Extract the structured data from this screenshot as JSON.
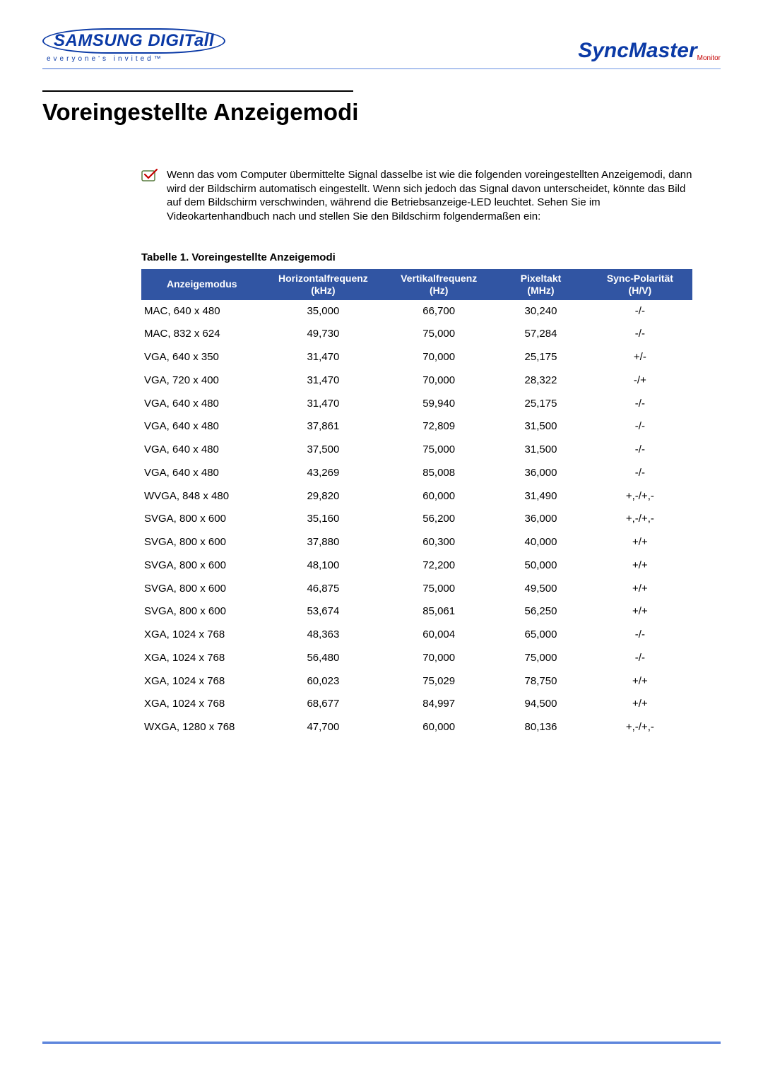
{
  "header": {
    "logo_left_main": "SAMSUNG DIGITall",
    "logo_left_tag": "everyone's invited™",
    "logo_right_main": "SyncMaster",
    "logo_right_sub": "Monitor"
  },
  "page_title": "Voreingestellte Anzeigemodi",
  "intro_text": "Wenn das vom Computer übermittelte Signal dasselbe ist wie die folgenden voreingestellten Anzeigemodi, dann wird der Bildschirm automatisch eingestellt. Wenn sich jedoch das Signal davon unterscheidet, könnte das Bild auf dem Bildschirm verschwinden, während die Betriebsanzeige-LED leuchtet. Sehen Sie im Videokartenhandbuch nach und stellen Sie den Bildschirm folgendermaßen ein:",
  "table": {
    "caption": "Tabelle 1. Voreingestellte Anzeigemodi",
    "header_bg": "#3155a3",
    "header_fg": "#ffffff",
    "columns": [
      {
        "label_line1": "Anzeigemodus",
        "label_line2": ""
      },
      {
        "label_line1": "Horizontalfrequenz",
        "label_line2": "(kHz)"
      },
      {
        "label_line1": "Vertikalfrequenz",
        "label_line2": "(Hz)"
      },
      {
        "label_line1": "Pixeltakt",
        "label_line2": "(MHz)"
      },
      {
        "label_line1": "Sync-Polarität",
        "label_line2": "(H/V)"
      }
    ],
    "rows": [
      {
        "mode": "MAC, 640 x 480",
        "h": "35,000",
        "v": "66,700",
        "p": "30,240",
        "s": "-/-"
      },
      {
        "mode": "MAC, 832 x 624",
        "h": "49,730",
        "v": "75,000",
        "p": "57,284",
        "s": "-/-"
      },
      {
        "mode": "VGA, 640 x 350",
        "h": "31,470",
        "v": "70,000",
        "p": "25,175",
        "s": "+/-"
      },
      {
        "mode": "VGA, 720 x 400",
        "h": "31,470",
        "v": "70,000",
        "p": "28,322",
        "s": "-/+"
      },
      {
        "mode": "VGA, 640 x 480",
        "h": "31,470",
        "v": "59,940",
        "p": "25,175",
        "s": "-/-"
      },
      {
        "mode": "VGA, 640 x 480",
        "h": "37,861",
        "v": "72,809",
        "p": "31,500",
        "s": "-/-"
      },
      {
        "mode": "VGA, 640 x 480",
        "h": "37,500",
        "v": "75,000",
        "p": "31,500",
        "s": "-/-"
      },
      {
        "mode": "VGA, 640 x 480",
        "h": "43,269",
        "v": "85,008",
        "p": "36,000",
        "s": "-/-"
      },
      {
        "mode": "WVGA, 848 x 480",
        "h": "29,820",
        "v": "60,000",
        "p": "31,490",
        "s": "+,-/+,-"
      },
      {
        "mode": "SVGA, 800 x 600",
        "h": "35,160",
        "v": "56,200",
        "p": "36,000",
        "s": "+,-/+,-"
      },
      {
        "mode": "SVGA, 800 x 600",
        "h": "37,880",
        "v": "60,300",
        "p": "40,000",
        "s": "+/+"
      },
      {
        "mode": "SVGA, 800 x 600",
        "h": "48,100",
        "v": "72,200",
        "p": "50,000",
        "s": "+/+"
      },
      {
        "mode": "SVGA, 800 x 600",
        "h": "46,875",
        "v": "75,000",
        "p": "49,500",
        "s": "+/+"
      },
      {
        "mode": "SVGA, 800 x 600",
        "h": "53,674",
        "v": "85,061",
        "p": "56,250",
        "s": "+/+"
      },
      {
        "mode": "XGA, 1024 x 768",
        "h": "48,363",
        "v": "60,004",
        "p": "65,000",
        "s": "-/-"
      },
      {
        "mode": "XGA, 1024 x 768",
        "h": "56,480",
        "v": "70,000",
        "p": "75,000",
        "s": "-/-"
      },
      {
        "mode": "XGA, 1024 x 768",
        "h": "60,023",
        "v": "75,029",
        "p": "78,750",
        "s": "+/+"
      },
      {
        "mode": "XGA, 1024 x 768",
        "h": "68,677",
        "v": "84,997",
        "p": "94,500",
        "s": "+/+"
      },
      {
        "mode": "WXGA, 1280 x 768",
        "h": "47,700",
        "v": "60,000",
        "p": "80,136",
        "s": "+,-/+,-"
      }
    ]
  },
  "colors": {
    "divider": "#3a6ad4",
    "brand_blue": "#0b3aa6",
    "brand_red": "#c40000",
    "text": "#000000",
    "background": "#ffffff"
  },
  "fonts": {
    "body_size_pt": 11,
    "title_size_pt": 25,
    "header_size_pt": 10
  }
}
